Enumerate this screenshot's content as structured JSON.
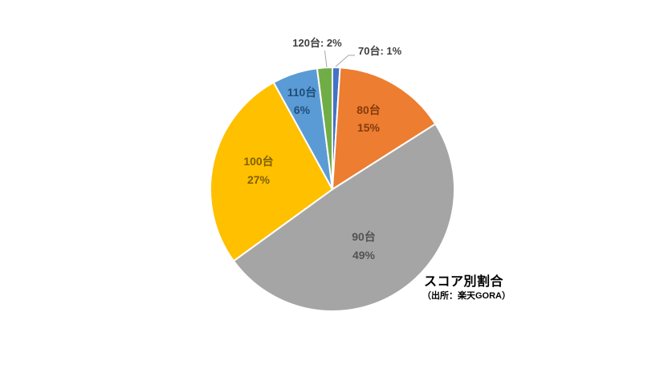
{
  "page": {
    "background_color": "#ffffff"
  },
  "chart_data": {
    "type": "pie",
    "title": "スコア別割合",
    "source": "（出所：楽天GORA）",
    "start_angle_deg": 0,
    "direction": "clockwise",
    "legend": "none",
    "unit": "%",
    "categories": [
      "70台",
      "80台",
      "90台",
      "100台",
      "110台",
      "120台"
    ],
    "values": [
      1,
      15,
      49,
      27,
      6,
      2
    ],
    "slices": [
      {
        "id": "70",
        "label": "70台",
        "value_pct": 1,
        "color": "#4472C4",
        "label_style": "callout",
        "callout_text": "70台: 1%"
      },
      {
        "id": "80",
        "label": "80台",
        "value_pct": 15,
        "color": "#ED7D31",
        "label_style": "inside",
        "label_color": "#843C0C"
      },
      {
        "id": "90",
        "label": "90台",
        "value_pct": 49,
        "color": "#A5A5A5",
        "label_style": "inside",
        "label_color": "#525252"
      },
      {
        "id": "100",
        "label": "100台",
        "value_pct": 27,
        "color": "#FFC000",
        "label_style": "inside",
        "label_color": "#7F6000"
      },
      {
        "id": "110",
        "label": "110台",
        "value_pct": 6,
        "color": "#5B9BD5",
        "label_style": "inside",
        "label_color": "#1F4E79"
      },
      {
        "id": "120",
        "label": "120台",
        "value_pct": 2,
        "color": "#70AD47",
        "label_style": "callout",
        "callout_text": "120台: 2%"
      }
    ],
    "slice_border_color": "#ffffff",
    "leader_line_color": "#A6A6A6",
    "callout_text_color": "#404040"
  }
}
